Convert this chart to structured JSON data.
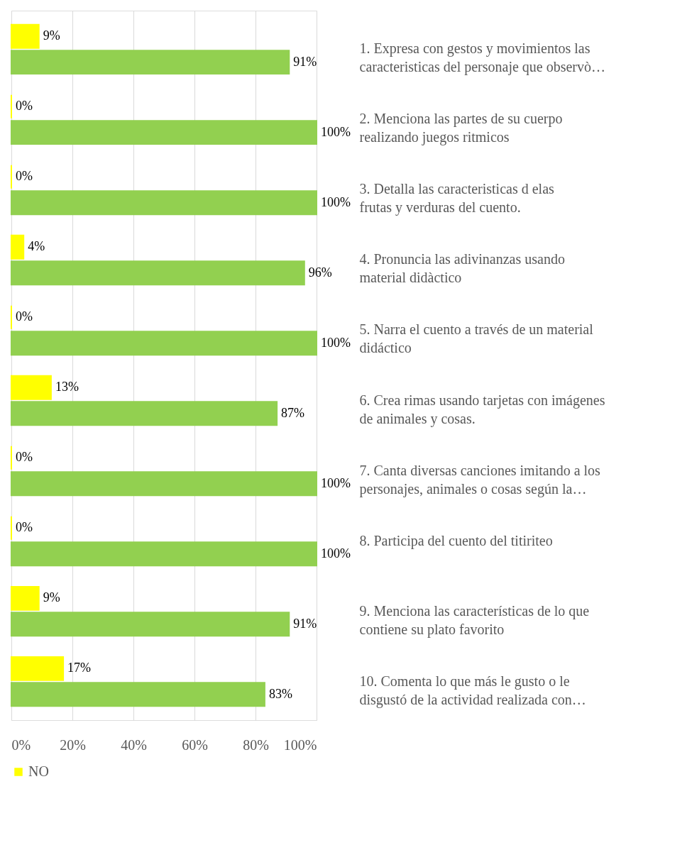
{
  "chart_data": {
    "type": "bar",
    "orientation": "horizontal",
    "categories": [
      "1. Expresa con gestos y movimientos las caracteristicas del personaje que observò…",
      "2. Menciona las partes de su cuerpo realizando juegos ritmicos",
      "3. Detalla las caracteristicas d elas frutas y verduras del cuento.",
      "4. Pronuncia las adivinanzas usando material didàctico",
      "5. Narra el cuento a través de un material didáctico",
      "6. Crea rimas usando tarjetas con imágenes de animales y cosas.",
      "7. Canta diversas canciones imitando a los personajes, animales o cosas según la…",
      "8. Participa del cuento del titiriteo",
      "9. Menciona las características de lo que contiene su plato favorito",
      "10. Comenta lo que más le gusto o le disgustó de la actividad realizada con…"
    ],
    "series": [
      {
        "name": "NO",
        "color": "#ffff00",
        "values": [
          9,
          0,
          0,
          4,
          0,
          13,
          0,
          0,
          9,
          17
        ],
        "value_labels": [
          "9%",
          "0%",
          "0%",
          "4%",
          "0%",
          "13%",
          "0%",
          "0%",
          "9%",
          "17%"
        ]
      },
      {
        "color": "#92d050",
        "values": [
          91,
          100,
          100,
          96,
          100,
          87,
          100,
          100,
          91,
          83
        ],
        "value_labels": [
          "91%",
          "100%",
          "100%",
          "96%",
          "100%",
          "87%",
          "100%",
          "100%",
          "91%",
          "83%"
        ]
      }
    ],
    "xlim": [
      0,
      100
    ],
    "xticks": [
      {
        "value": 0,
        "label": "0%"
      },
      {
        "value": 20,
        "label": "20%"
      },
      {
        "value": 40,
        "label": "40%"
      },
      {
        "value": 60,
        "label": "60%"
      },
      {
        "value": 80,
        "label": "80%"
      },
      {
        "value": 100,
        "label": "100%"
      }
    ],
    "grid": "x",
    "legend": "bottom"
  }
}
